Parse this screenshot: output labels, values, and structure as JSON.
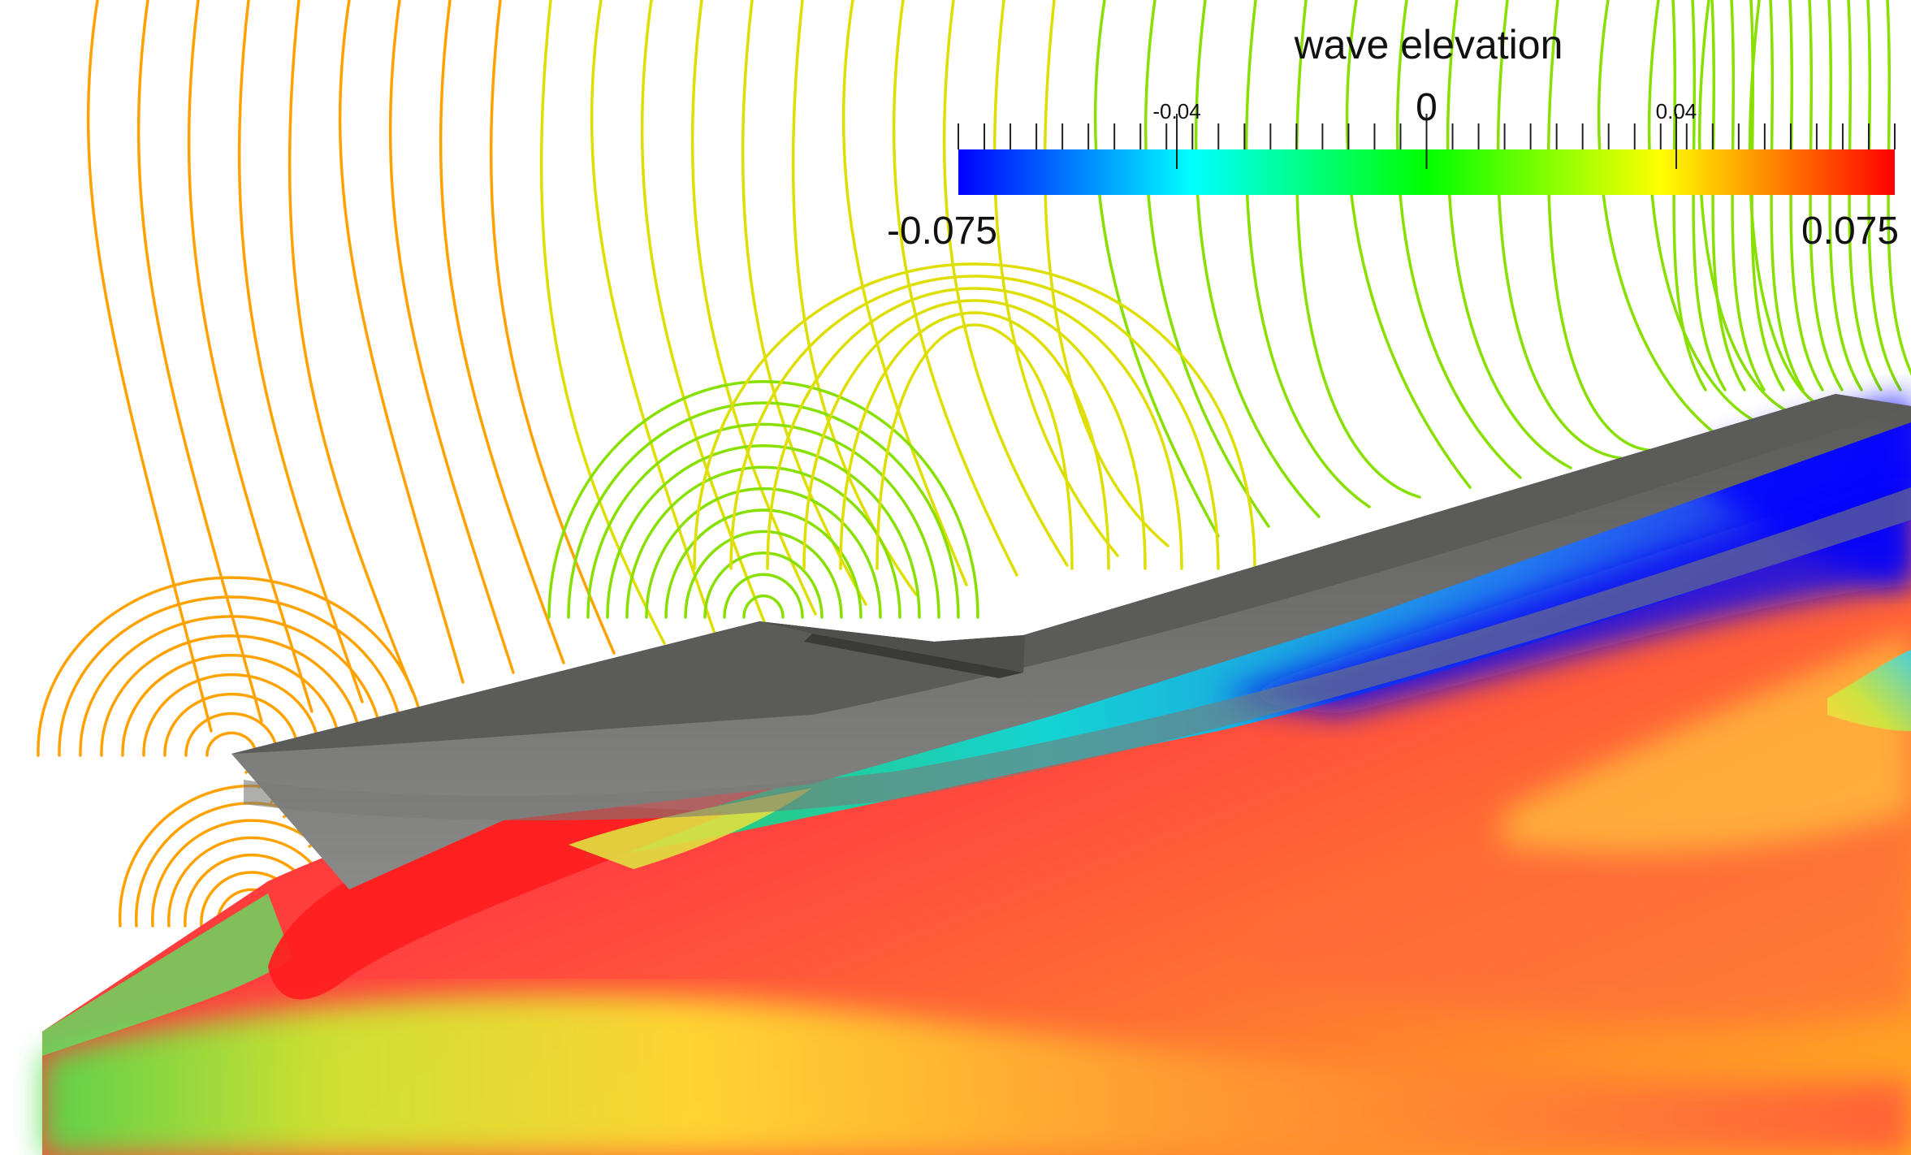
{
  "chart_data": {
    "type": "heatmap",
    "title": "",
    "colorbar": {
      "title": "wave elevation",
      "range": [
        -0.075,
        0.075
      ],
      "ticks": [
        {
          "value": -0.04,
          "label": "-0.04",
          "style": "minor"
        },
        {
          "value": 0,
          "label": "0",
          "style": "major"
        },
        {
          "value": 0.04,
          "label": "0.04",
          "style": "minor"
        }
      ],
      "min_label": "-0.075",
      "max_label": "0.075",
      "colormap": [
        "#0000ff",
        "#00ffff",
        "#00ff00",
        "#ffff00",
        "#ff0000"
      ],
      "tick_count": 37
    },
    "field": {
      "description_values": [],
      "low_colors": "#0000ff",
      "high_colors": "#ff3a3a"
    },
    "grid": false,
    "legend_position": "top-right"
  },
  "colors": {
    "hull_dark": "#4a4a48",
    "hull_mid": "#6e6e6c",
    "hull_light": "#8c8c8a",
    "contour_orange": "#ffa200",
    "contour_yellow": "#dede00",
    "contour_green": "#88e000"
  }
}
